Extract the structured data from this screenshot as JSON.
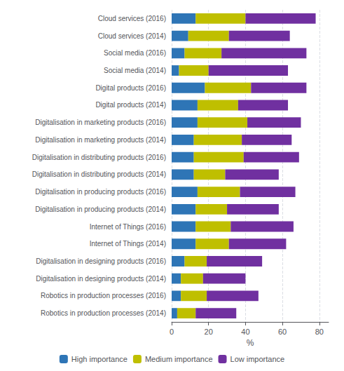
{
  "chart_data": {
    "type": "bar",
    "orientation": "horizontal",
    "stacked": true,
    "categories": [
      "Cloud services (2016)",
      "Cloud services (2014)",
      "Social media (2016)",
      "Social media (2014)",
      "Digital products (2016)",
      "Digital products (2014)",
      "Digitalisation in marketing products (2016)",
      "Digitalisation in marketing products (2014)",
      "Digitalisation in distributing products (2016)",
      "Digitalisation in distributing products (2014)",
      "Digitalisation in producing products (2016)",
      "Digitalisation in producing products (2014)",
      "Internet of Things (2016)",
      "Internet of Things (2014)",
      "Digitalisation in designing products (2016)",
      "Digitalisation in designing products (2014)",
      "Robotics in production processes (2016)",
      "Robotics in production processes (2014)"
    ],
    "series": [
      {
        "name": "High importance",
        "color": "#2E75B6",
        "values": [
          13,
          9,
          7,
          4,
          18,
          14,
          14,
          12,
          12,
          12,
          14,
          13,
          13,
          13,
          7,
          5,
          5,
          3
        ]
      },
      {
        "name": "Medium importance",
        "color": "#BFBF00",
        "values": [
          27,
          22,
          20,
          16,
          25,
          22,
          27,
          26,
          27,
          17,
          23,
          17,
          19,
          18,
          12,
          12,
          14,
          10
        ]
      },
      {
        "name": "Low importance",
        "color": "#7030A0",
        "values": [
          38,
          33,
          46,
          43,
          30,
          27,
          29,
          27,
          30,
          29,
          30,
          28,
          34,
          31,
          30,
          23,
          28,
          22
        ]
      }
    ],
    "xlim": [
      0,
      85
    ],
    "xticks": [
      0,
      20,
      40,
      60,
      80
    ],
    "xlabel": "%",
    "grid": true,
    "legend": "bottom"
  }
}
